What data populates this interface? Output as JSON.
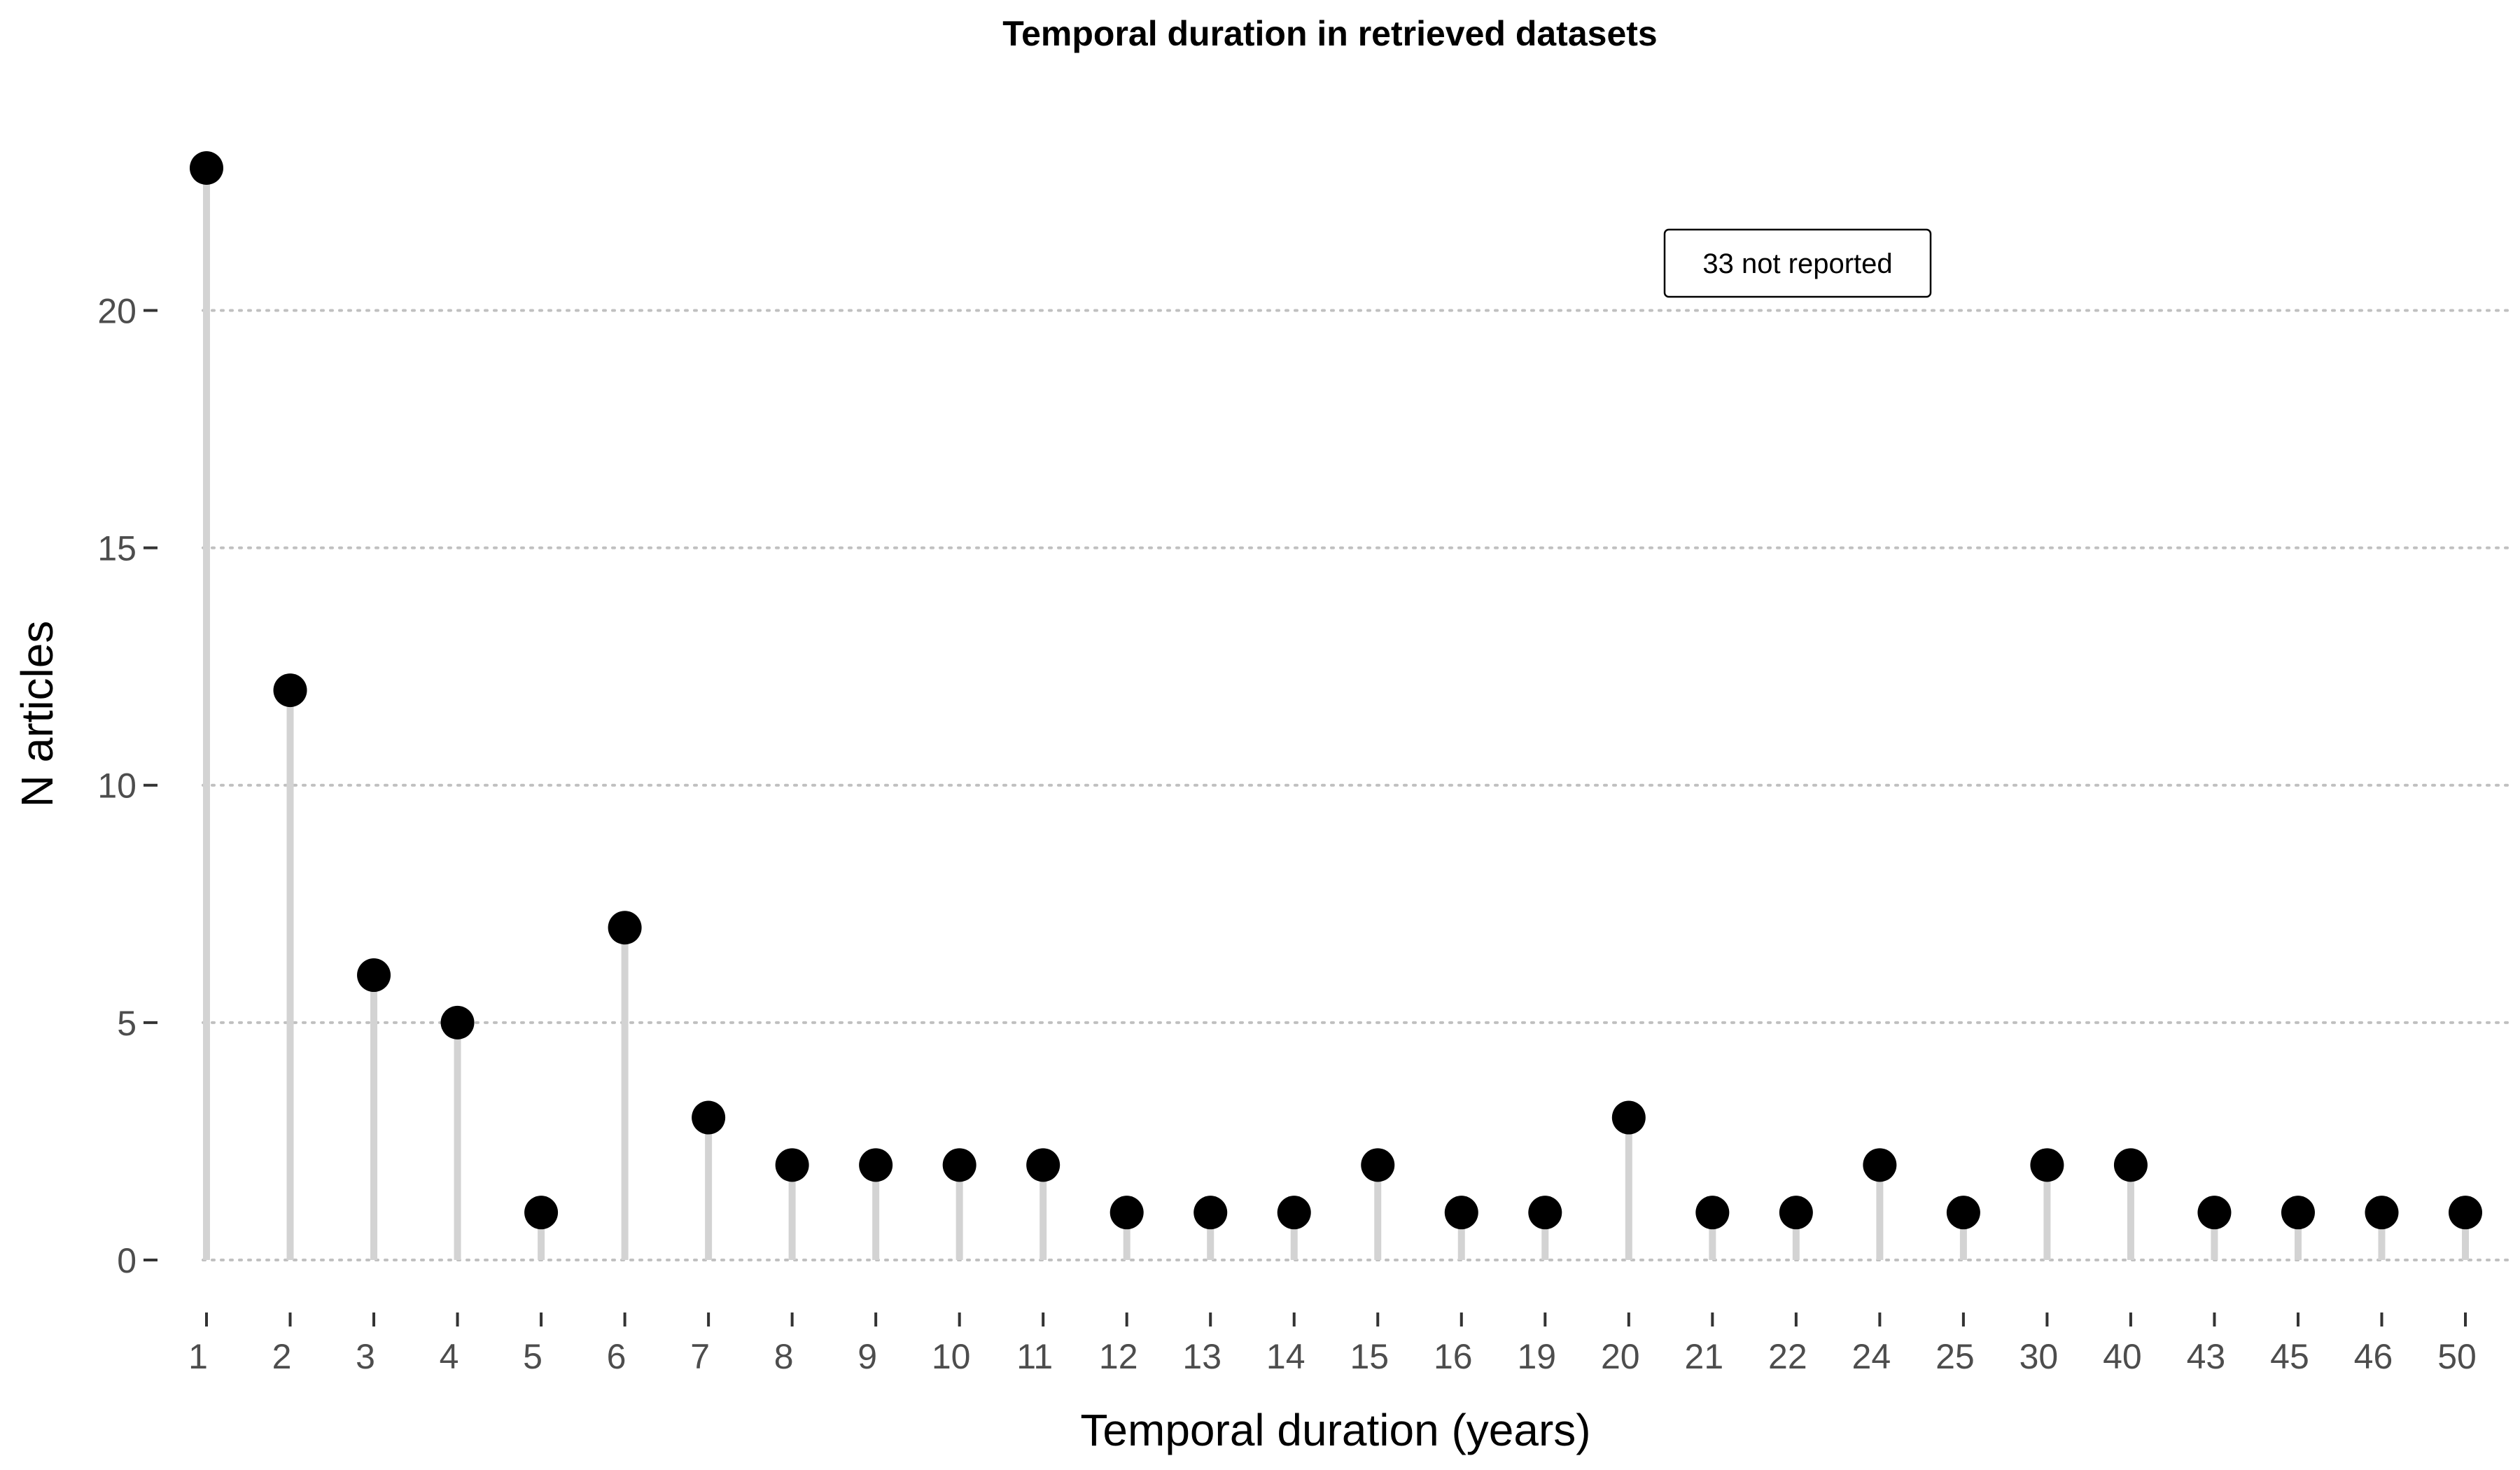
{
  "chart_data": {
    "type": "lollipop",
    "title": "Temporal duration in retrieved datasets",
    "xlabel": "Temporal duration (years)",
    "ylabel": "N articles",
    "categories": [
      "1",
      "2",
      "3",
      "4",
      "5",
      "6",
      "7",
      "8",
      "9",
      "10",
      "11",
      "12",
      "13",
      "14",
      "15",
      "16",
      "19",
      "20",
      "21",
      "22",
      "24",
      "25",
      "30",
      "40",
      "43",
      "45",
      "46",
      "50"
    ],
    "values": [
      23,
      12,
      6,
      5,
      1,
      7,
      3,
      2,
      2,
      2,
      2,
      1,
      1,
      1,
      2,
      1,
      1,
      3,
      1,
      1,
      2,
      1,
      2,
      2,
      1,
      1,
      1,
      1
    ],
    "ylim": [
      0,
      23
    ],
    "yticks": [
      0,
      5,
      10,
      15,
      20
    ],
    "grid": "horizontal-dotted",
    "annotation": "33 not reported",
    "colors": {
      "stem": "#d3d3d3",
      "point": "#000000",
      "grid": "#c0c0c0",
      "tick_text": "#4d4d4d"
    }
  }
}
